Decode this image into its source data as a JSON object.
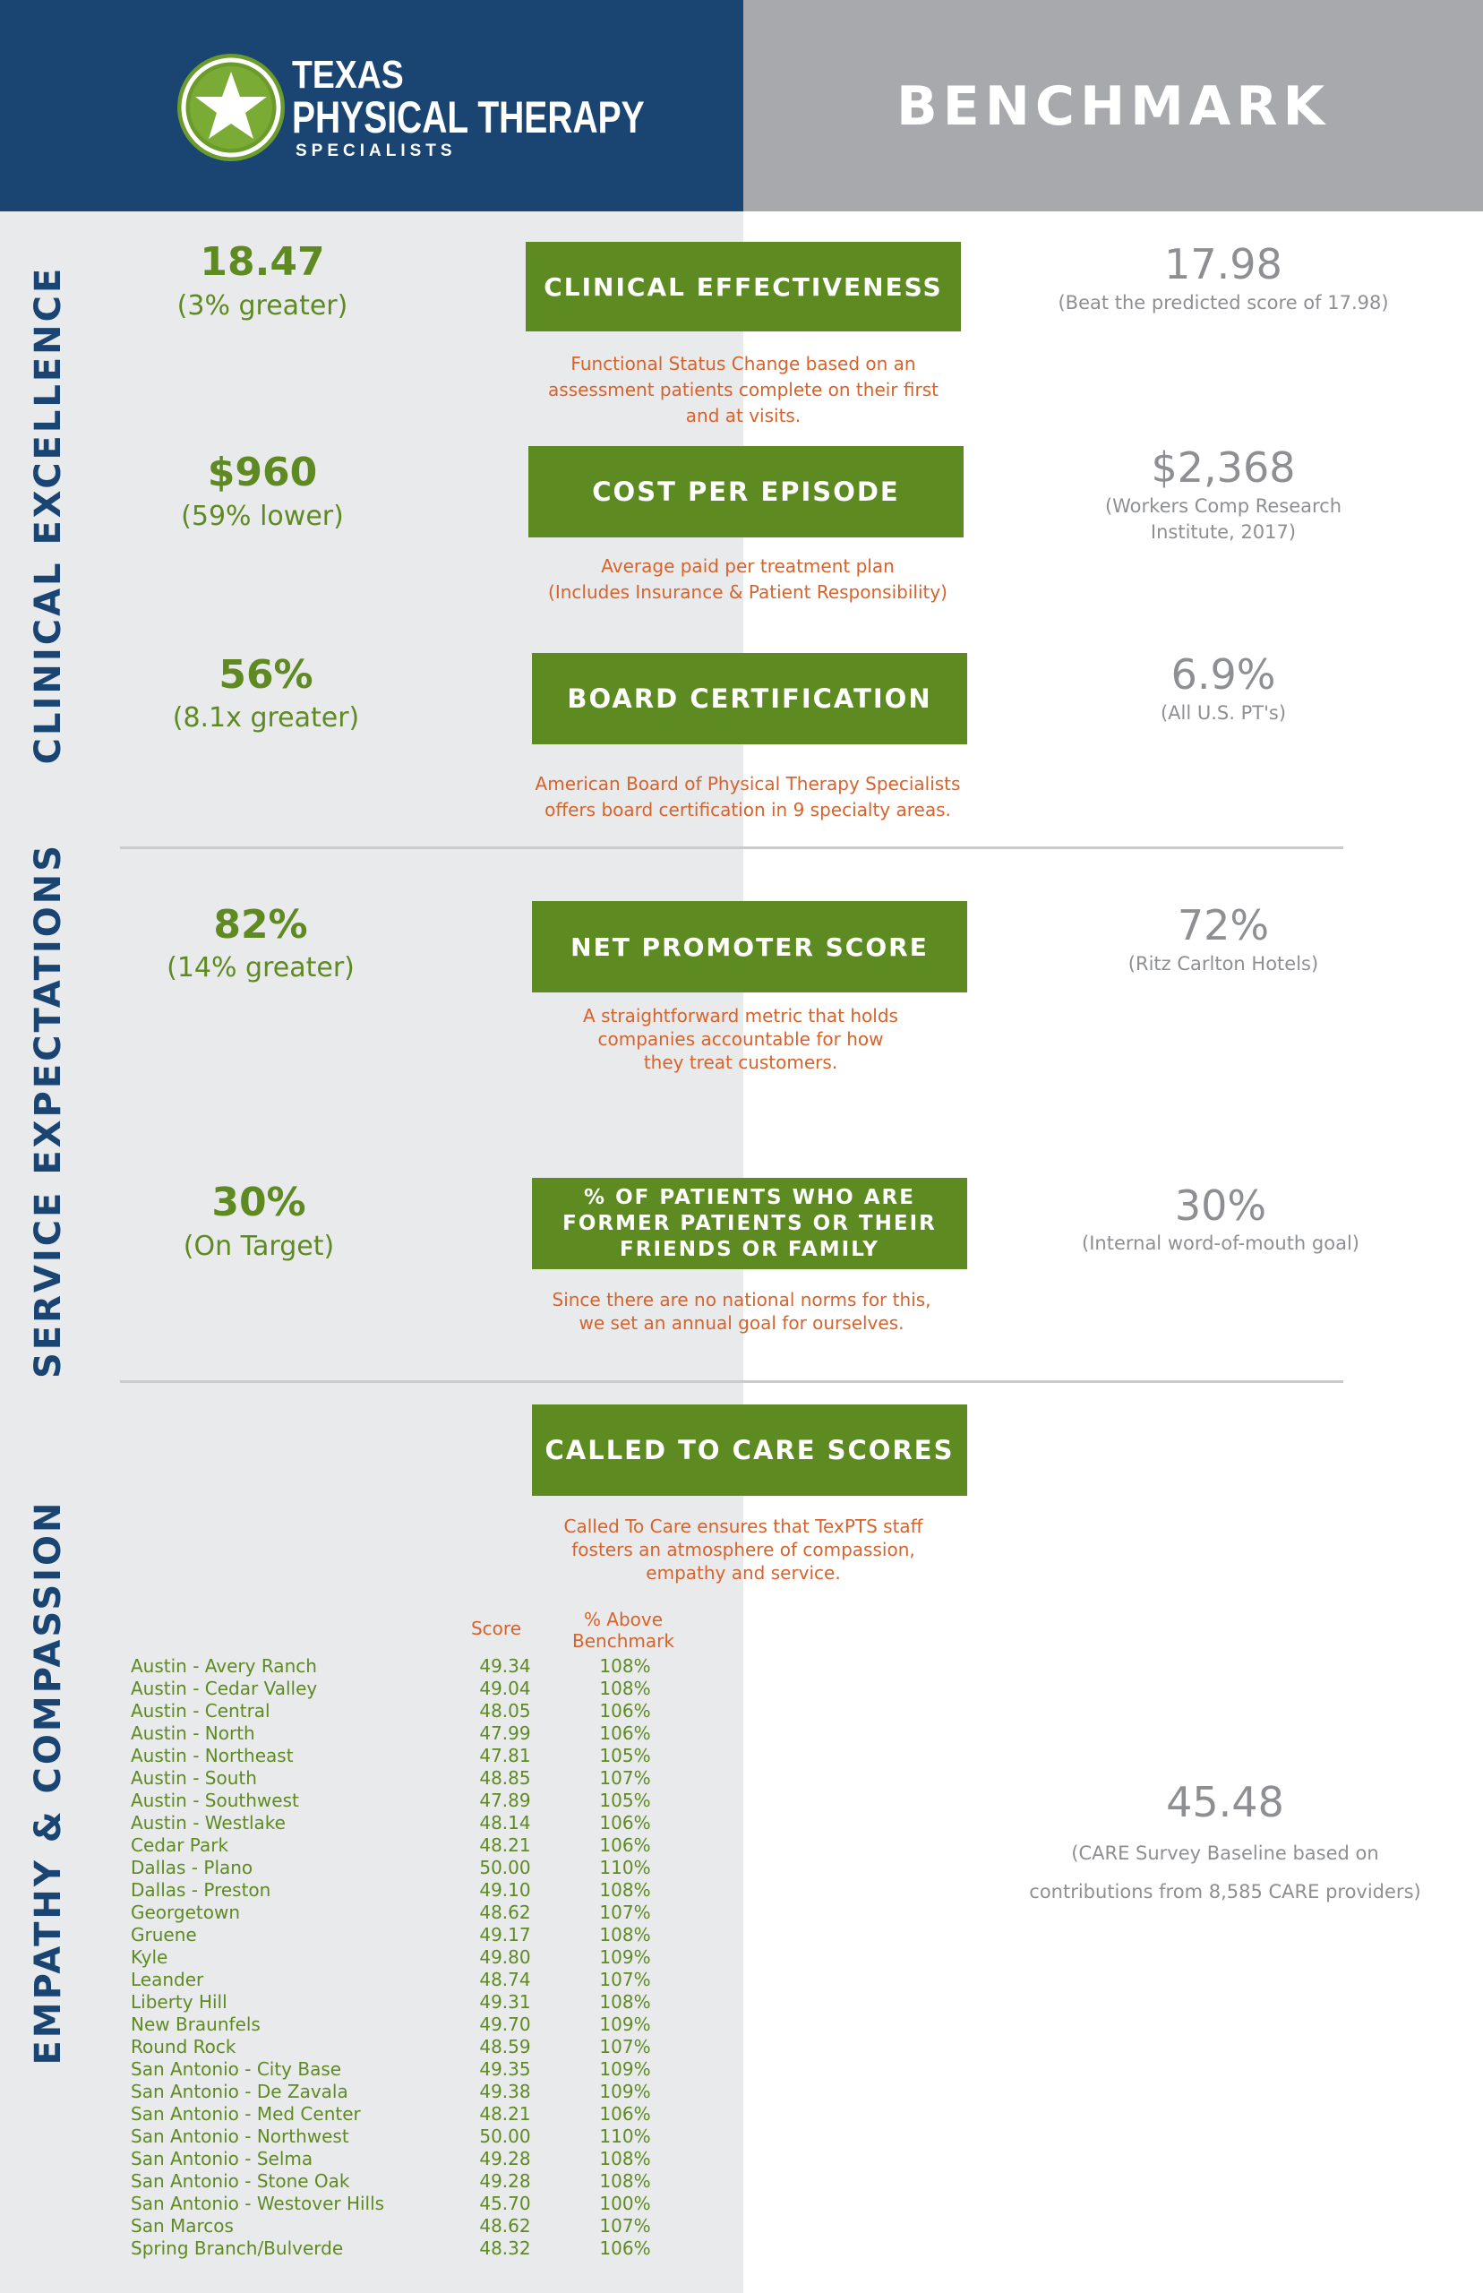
{
  "logo": {
    "line1": "TEXAS",
    "line2": "PHYSICAL THERAPY",
    "line3": "SPECIALISTS"
  },
  "header": {
    "benchmark": "BENCHMARK"
  },
  "sections": {
    "clinical": "CLINICAL EXCELLENCE",
    "service": "SERVICE EXPECTATIONS",
    "empathy": "EMPATHY & COMPASSION"
  },
  "metrics": [
    {
      "value": "18.47",
      "sub": "(3% greater)",
      "title": "CLINICAL EFFECTIVENESS",
      "desc": [
        "Functional Status Change based on an",
        "assessment patients complete on their first",
        "and at visits."
      ],
      "bench_value": "17.98",
      "bench_sub": [
        "(Beat the predicted score of 17.98)"
      ]
    },
    {
      "value": "$960",
      "sub": "(59% lower)",
      "title": "COST PER EPISODE",
      "desc": [
        "Average paid per treatment plan",
        "(Includes Insurance & Patient Responsibility)"
      ],
      "bench_value": "$2,368",
      "bench_sub": [
        "(Workers Comp Research",
        "Institute, 2017)"
      ]
    },
    {
      "value": "56%",
      "sub": "(8.1x greater)",
      "title": "BOARD CERTIFICATION",
      "desc": [
        "American Board of Physical Therapy Specialists",
        "offers board certification in 9 specialty areas."
      ],
      "bench_value": "6.9%",
      "bench_sub": [
        "(All U.S. PT's)"
      ]
    },
    {
      "value": "82%",
      "sub": "(14% greater)",
      "title": "NET PROMOTER SCORE",
      "desc": [
        "A straightforward metric that holds",
        "companies accountable for how",
        "they treat customers."
      ],
      "bench_value": "72%",
      "bench_sub": [
        "(Ritz Carlton Hotels)"
      ]
    },
    {
      "value": "30%",
      "sub": "(On Target)",
      "title": [
        "% OF PATIENTS WHO ARE",
        "FORMER PATIENTS OR THEIR",
        "FRIENDS OR FAMILY"
      ],
      "desc": [
        "Since there are no national norms for this,",
        "we set an annual goal for ourselves."
      ],
      "bench_value": "30%",
      "bench_sub": [
        "(Internal word-of-mouth goal)"
      ]
    }
  ],
  "care": {
    "title": "CALLED TO CARE SCORES",
    "desc": [
      "Called To Care ensures that TexPTS staff",
      "fosters an atmosphere of compassion,",
      "empathy and service."
    ],
    "col_score": "Score",
    "col_pct": [
      "% Above",
      "Benchmark"
    ],
    "bench_value": "45.48",
    "bench_sub": [
      "(CARE Survey Baseline based on",
      "contributions from 8,585 CARE providers)"
    ],
    "rows": [
      {
        "name": "Austin - Avery Ranch",
        "score": "49.34",
        "pct": "108%"
      },
      {
        "name": "Austin - Cedar Valley",
        "score": "49.04",
        "pct": "108%"
      },
      {
        "name": "Austin - Central",
        "score": "48.05",
        "pct": "106%"
      },
      {
        "name": "Austin - North",
        "score": "47.99",
        "pct": "106%"
      },
      {
        "name": "Austin - Northeast",
        "score": "47.81",
        "pct": "105%"
      },
      {
        "name": "Austin - South",
        "score": "48.85",
        "pct": "107%"
      },
      {
        "name": "Austin - Southwest",
        "score": "47.89",
        "pct": "105%"
      },
      {
        "name": "Austin - Westlake",
        "score": "48.14",
        "pct": "106%"
      },
      {
        "name": "Cedar Park",
        "score": "48.21",
        "pct": "106%"
      },
      {
        "name": "Dallas - Plano",
        "score": "50.00",
        "pct": "110%"
      },
      {
        "name": "Dallas - Preston",
        "score": "49.10",
        "pct": "108%"
      },
      {
        "name": "Georgetown",
        "score": "48.62",
        "pct": "107%"
      },
      {
        "name": "Gruene",
        "score": "49.17",
        "pct": "108%"
      },
      {
        "name": "Kyle",
        "score": "49.80",
        "pct": "109%"
      },
      {
        "name": "Leander",
        "score": "48.74",
        "pct": "107%"
      },
      {
        "name": "Liberty Hill",
        "score": "49.31",
        "pct": "108%"
      },
      {
        "name": "New Braunfels",
        "score": "49.70",
        "pct": "109%"
      },
      {
        "name": "Round Rock",
        "score": "48.59",
        "pct": "107%"
      },
      {
        "name": "San Antonio - City Base",
        "score": "49.35",
        "pct": "109%"
      },
      {
        "name": "San Antonio - De Zavala",
        "score": "49.38",
        "pct": "109%"
      },
      {
        "name": "San Antonio - Med Center",
        "score": "48.21",
        "pct": "106%"
      },
      {
        "name": "San Antonio - Northwest",
        "score": "50.00",
        "pct": "110%"
      },
      {
        "name": "San Antonio - Selma",
        "score": "49.28",
        "pct": "108%"
      },
      {
        "name": "San Antonio - Stone Oak",
        "score": "49.28",
        "pct": "108%"
      },
      {
        "name": "San Antonio - Westover Hills",
        "score": "45.70",
        "pct": "100%"
      },
      {
        "name": "San Marcos",
        "score": "48.62",
        "pct": "107%"
      },
      {
        "name": "Spring Branch/Bulverde",
        "score": "48.32",
        "pct": "106%"
      }
    ]
  },
  "colors": {
    "navy": "#1a4573",
    "green": "#5d8b22",
    "orange": "#d7632c",
    "gray": "#a7a9ac"
  }
}
